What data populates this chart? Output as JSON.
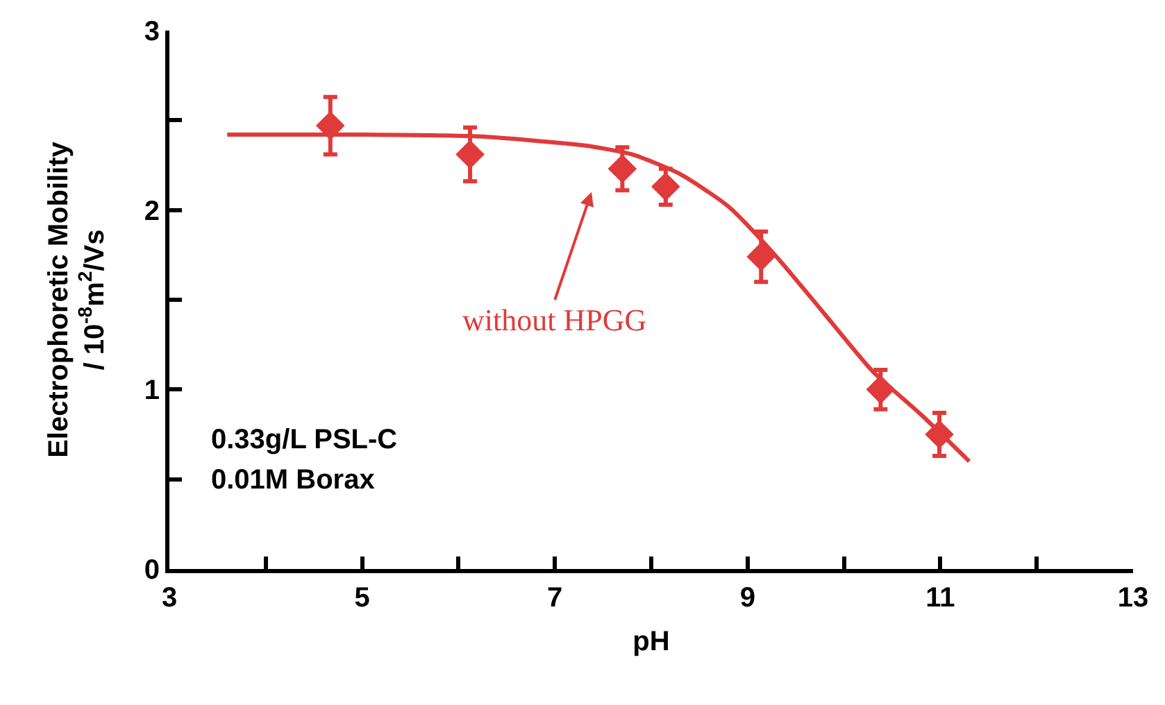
{
  "chart_data": {
    "type": "scatter",
    "xlabel": "pH",
    "ylabel": "Electrophoretic Mobility\n/ 10$^{-8}$m$^{2}$/Vs",
    "xlim": [
      3,
      13
    ],
    "xticks": [
      3,
      5,
      7,
      9,
      11,
      13
    ],
    "ylim": [
      0,
      3
    ],
    "yticks": [
      0,
      1,
      2,
      3
    ],
    "marker": "diamond",
    "series": [
      {
        "color": "#e03a3a",
        "x": [
          4.67,
          6.12,
          7.7,
          8.15,
          9.14,
          10.38,
          10.99
        ],
        "values": [
          2.47,
          2.31,
          2.23,
          2.13,
          1.74,
          1.0,
          0.75
        ],
        "errors": [
          0.16,
          0.15,
          0.12,
          0.1,
          0.14,
          0.11,
          0.12
        ]
      },
      {
        "type": "line",
        "color": "#e03a3a",
        "line_style": "solid",
        "marker": "none",
        "x": [
          3.6,
          5,
          6.2,
          7.3,
          7.8,
          8.3,
          8.8,
          9.3,
          9.8,
          10.3,
          10.8,
          11.3
        ],
        "values": [
          2.42,
          2.42,
          2.41,
          2.36,
          2.31,
          2.2,
          2.02,
          1.74,
          1.42,
          1.1,
          0.86,
          0.6
        ]
      }
    ],
    "annotations": [
      "without HPGG",
      "0.33g/L PSL-C",
      "0.01M Borax"
    ]
  }
}
